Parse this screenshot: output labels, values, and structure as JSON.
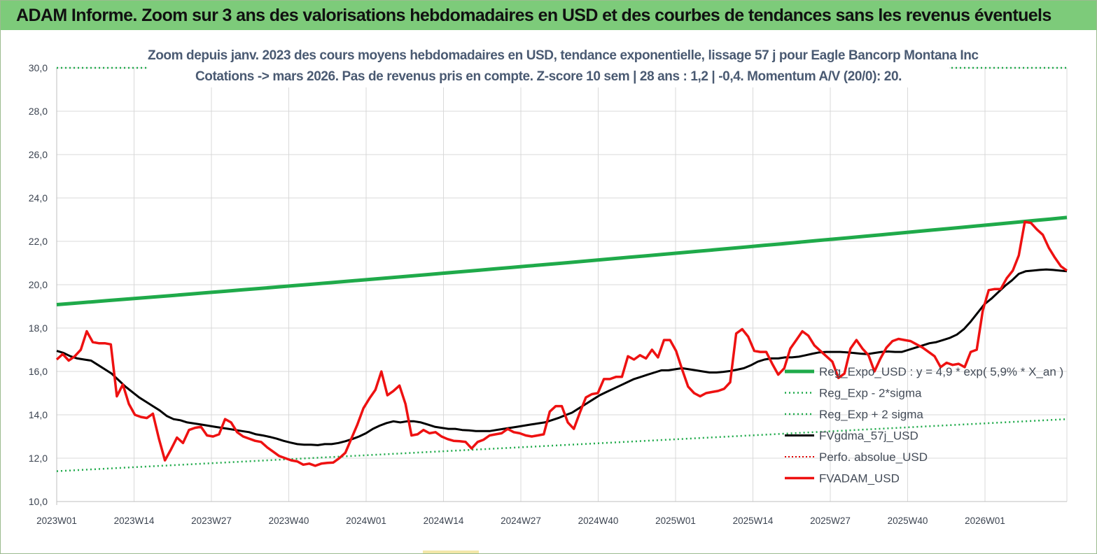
{
  "banner": {
    "title": "ADAM Informe. Zoom sur 3 ans des valorisations hebdomadaires en USD et des courbes de tendances sans les revenus éventuels"
  },
  "chart_data": {
    "type": "line",
    "title_line1": "Zoom depuis janv. 2023 des cours moyens hebdomadaires en USD, tendance exponentielle, lissage 57 j pour Eagle Bancorp Montana Inc",
    "title_line2": "Cotations -> mars 2026. Pas de revenus pris en compte. Z-score 10 sem | 28 ans : 1,2 | -0,4. Momentum A/V (20/0): 20.",
    "ylim": [
      10,
      30
    ],
    "yticks": [
      "10,0",
      "12,0",
      "14,0",
      "16,0",
      "18,0",
      "20,0",
      "22,0",
      "24,0",
      "26,0",
      "28,0",
      "30,0"
    ],
    "xticks": [
      "2023W01",
      "2023W14",
      "2023W27",
      "2023W40",
      "2024W01",
      "2024W14",
      "2024W27",
      "2024W40",
      "2025W01",
      "2025W14",
      "2025W27",
      "2025W40",
      "2026W01"
    ],
    "grid": true,
    "legend_position": "right",
    "colors": {
      "reg_exp": "#1faa4a",
      "reg_sigma": "#1faa4a",
      "fvgdma": "#000000",
      "perfo": "#e00000",
      "fvadam": "#ee1111"
    },
    "series": [
      {
        "name": "Reg_Expo_USD : y = 4,9 * exp( 5,9% * X_an )",
        "key": "reg_exp",
        "start": 19.08,
        "end": 23.1
      },
      {
        "name": "Reg_Exp - 2*sigma",
        "key": "reg_minus",
        "start": 11.4,
        "end": 13.8
      },
      {
        "name": "Reg_Exp + 2 sigma",
        "key": "reg_plus",
        "value": 30.0
      },
      {
        "name": "FVgdma_57j_USD",
        "key": "fvgdma",
        "values": [
          16.95,
          16.85,
          16.7,
          16.6,
          16.55,
          16.5,
          16.3,
          16.1,
          15.9,
          15.6,
          15.3,
          15.05,
          14.8,
          14.6,
          14.4,
          14.2,
          13.95,
          13.8,
          13.75,
          13.65,
          13.6,
          13.55,
          13.5,
          13.45,
          13.4,
          13.35,
          13.3,
          13.25,
          13.2,
          13.1,
          13.05,
          12.98,
          12.9,
          12.8,
          12.72,
          12.65,
          12.62,
          12.62,
          12.6,
          12.65,
          12.65,
          12.7,
          12.78,
          12.88,
          13.0,
          13.15,
          13.35,
          13.5,
          13.62,
          13.7,
          13.65,
          13.7,
          13.7,
          13.65,
          13.55,
          13.45,
          13.4,
          13.35,
          13.35,
          13.3,
          13.28,
          13.25,
          13.25,
          13.25,
          13.3,
          13.35,
          13.4,
          13.45,
          13.5,
          13.55,
          13.6,
          13.65,
          13.75,
          13.85,
          13.98,
          14.1,
          14.3,
          14.5,
          14.7,
          14.9,
          15.05,
          15.2,
          15.35,
          15.5,
          15.65,
          15.75,
          15.85,
          15.95,
          16.05,
          16.05,
          16.1,
          16.15,
          16.1,
          16.05,
          16.0,
          15.95,
          15.95,
          15.98,
          16.02,
          16.08,
          16.15,
          16.28,
          16.45,
          16.55,
          16.6,
          16.6,
          16.65,
          16.65,
          16.68,
          16.75,
          16.82,
          16.88,
          16.9,
          16.9,
          16.9,
          16.88,
          16.85,
          16.82,
          16.8,
          16.85,
          16.9,
          16.92,
          16.9,
          16.9,
          17.0,
          17.1,
          17.2,
          17.3,
          17.35,
          17.45,
          17.55,
          17.7,
          17.95,
          18.3,
          18.7,
          19.1,
          19.35,
          19.65,
          19.95,
          20.2,
          20.5,
          20.62,
          20.65,
          20.68,
          20.7,
          20.68,
          20.65,
          20.62
        ]
      },
      {
        "name": "Perfo. absolue_USD",
        "key": "perfo",
        "values": []
      },
      {
        "name": "FVADAM_USD",
        "key": "fvadam",
        "values": [
          16.55,
          16.8,
          16.5,
          16.7,
          17.0,
          17.85,
          17.35,
          17.3,
          17.3,
          17.25,
          14.85,
          15.4,
          14.5,
          14.0,
          13.9,
          13.85,
          14.05,
          12.9,
          11.9,
          12.4,
          12.95,
          12.7,
          13.3,
          13.4,
          13.45,
          13.05,
          13.0,
          13.1,
          13.8,
          13.65,
          13.2,
          13.0,
          12.9,
          12.8,
          12.75,
          12.5,
          12.3,
          12.1,
          12.0,
          11.9,
          11.85,
          11.7,
          11.75,
          11.65,
          11.75,
          11.78,
          11.8,
          12.0,
          12.25,
          12.9,
          13.55,
          14.3,
          14.75,
          15.15,
          16.0,
          14.9,
          15.1,
          15.35,
          14.5,
          13.05,
          13.1,
          13.3,
          13.15,
          13.2,
          13.0,
          12.88,
          12.8,
          12.78,
          12.75,
          12.45,
          12.75,
          12.85,
          13.05,
          13.1,
          13.15,
          13.35,
          13.2,
          13.15,
          13.05,
          13.0,
          13.05,
          13.1,
          14.15,
          14.4,
          14.4,
          13.65,
          13.35,
          14.1,
          14.8,
          14.95,
          15.0,
          15.65,
          15.65,
          15.75,
          15.75,
          16.7,
          16.55,
          16.75,
          16.6,
          17.0,
          16.65,
          17.45,
          17.45,
          16.95,
          16.1,
          15.3,
          15.0,
          14.85,
          15.0,
          15.05,
          15.1,
          15.2,
          15.5,
          17.75,
          17.95,
          17.6,
          16.95,
          16.9,
          16.9,
          16.35,
          15.85,
          16.15,
          17.05,
          17.45,
          17.85,
          17.65,
          17.2,
          16.95,
          16.7,
          16.45,
          15.7,
          15.9,
          17.05,
          17.45,
          17.05,
          16.75,
          16.0,
          16.6,
          17.1,
          17.4,
          17.5,
          17.45,
          17.4,
          17.25,
          17.1,
          16.9,
          16.7,
          16.2,
          16.4,
          16.3,
          16.35,
          16.2,
          16.9,
          17.0,
          18.8,
          19.75,
          19.8,
          19.8,
          20.3,
          20.65,
          21.35,
          22.9,
          22.85,
          22.55,
          22.3,
          21.7,
          21.25,
          20.85,
          20.65
        ]
      }
    ]
  }
}
